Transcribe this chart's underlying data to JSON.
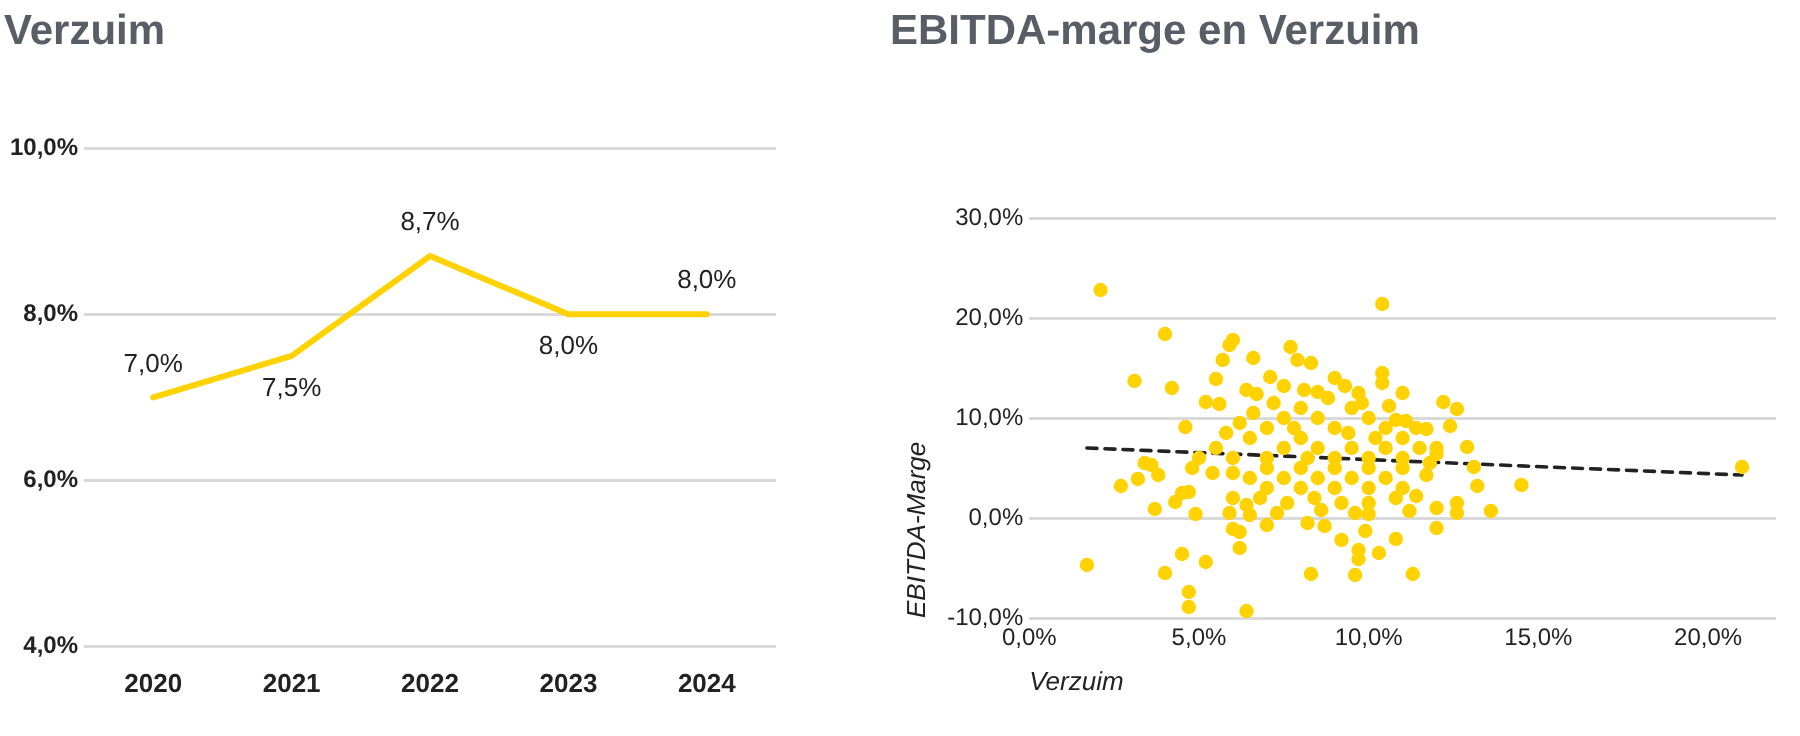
{
  "chart_data": [
    {
      "type": "line",
      "title": "Verzuim",
      "categories": [
        "2020",
        "2021",
        "2022",
        "2023",
        "2024"
      ],
      "series": [
        {
          "color": "#ffd200",
          "values": [
            7.0,
            7.5,
            8.7,
            8.0,
            8.0
          ],
          "value_labels": [
            "7,0%",
            "7,5%",
            "8,7%",
            "8,0%",
            "8,0%"
          ]
        }
      ],
      "ylim": [
        4,
        10
      ],
      "yticks": [
        {
          "value": 4,
          "label": "4,0%"
        },
        {
          "value": 6,
          "label": "6,0%"
        },
        {
          "value": 8,
          "label": "8,0%"
        },
        {
          "value": 10,
          "label": "10,0%"
        }
      ],
      "grid": "y",
      "marker": "none"
    },
    {
      "type": "scatter",
      "title": "EBITDA-marge en Verzuim",
      "xlabel": "Verzuim",
      "ylabel": "EBITDA-Marge",
      "xlim": [
        0,
        22
      ],
      "xticks": [
        {
          "value": 0,
          "label": "0,0%"
        },
        {
          "value": 5,
          "label": "5,0%"
        },
        {
          "value": 10,
          "label": "10,0%"
        },
        {
          "value": 15,
          "label": "15,0%"
        },
        {
          "value": 20,
          "label": "20,0%"
        }
      ],
      "ylim": [
        -10,
        30
      ],
      "yticks": [
        {
          "value": -10,
          "label": "-10,0%"
        },
        {
          "value": 0,
          "label": "0,0%"
        },
        {
          "value": 10,
          "label": "10,0%"
        },
        {
          "value": 20,
          "label": "20,0%"
        },
        {
          "value": 30,
          "label": "30,0%"
        }
      ],
      "grid": "y",
      "series": [
        {
          "type": "scatter",
          "color": "#ffd200",
          "marker": "circle",
          "x": [
            2.1,
            10.4,
            4.0,
            3.1,
            4.2,
            6.0,
            5.9,
            5.7,
            6.6,
            7.7,
            7.9,
            8.3,
            7.1,
            9.0,
            10.4,
            10.4,
            11.0,
            12.2,
            12.6,
            12.4,
            12.9,
            12.0,
            13.1,
            13.2,
            12.6,
            12.6,
            13.6,
            14.5,
            21.0,
            12.0,
            12.0,
            11.3,
            10.8,
            10.3,
            9.9,
            9.7,
            9.7,
            9.6,
            9.2,
            8.3,
            6.4,
            4.7,
            4.7,
            4.0,
            4.5,
            5.2,
            6.2,
            6.0,
            6.2,
            1.7,
            2.7,
            3.2,
            3.4,
            3.6,
            3.8,
            3.7,
            4.3,
            4.5,
            4.7,
            4.9,
            4.6,
            5.2,
            5.5,
            5.6,
            6.4,
            6.7,
            7.5,
            8.1,
            8.5,
            9.3,
            9.7,
            10.8,
            11.1,
            11.7,
            11.7,
            11.4,
            11.2,
            7.0,
            6.5,
            8.2,
            8.7,
            10.0,
            5.9,
            6.5,
            7.0,
            7.5,
            8.0,
            8.5,
            9.0,
            9.5,
            10.0,
            10.5,
            11.0,
            7.0,
            7.5,
            8.0,
            8.5,
            9.0,
            9.5,
            10.0,
            10.5,
            11.0,
            11.5,
            6.0,
            5.5,
            5.0,
            5.8,
            6.2,
            6.5,
            7.0,
            7.5,
            8.0,
            8.5,
            9.0,
            9.5,
            10.0,
            10.5,
            11.0,
            6.0,
            6.8,
            7.6,
            8.4,
            9.2,
            10.0,
            10.8,
            8.0,
            9.0,
            10.0,
            7.0,
            6.0,
            11.0,
            8.8,
            9.8,
            10.6,
            7.2,
            7.8,
            8.2,
            9.4,
            11.4,
            6.6,
            5.4,
            4.8,
            12.0,
            11.8,
            10.2,
            8.6,
            9.6,
            7.3,
            6.4
          ],
          "values": [
            22.8,
            21.4,
            18.4,
            13.7,
            13.0,
            17.8,
            17.3,
            15.8,
            16.0,
            17.1,
            15.8,
            15.5,
            14.1,
            14.0,
            14.5,
            13.5,
            12.5,
            11.6,
            10.9,
            9.2,
            7.1,
            6.4,
            5.1,
            3.2,
            1.5,
            0.5,
            0.7,
            3.3,
            5.1,
            1.0,
            -1.0,
            -5.6,
            -2.1,
            -3.5,
            -1.3,
            -3.2,
            -4.1,
            -5.7,
            -2.2,
            -5.6,
            -9.3,
            -8.9,
            -7.4,
            -5.5,
            -3.6,
            -4.4,
            -3.0,
            -1.1,
            -1.4,
            -4.7,
            3.2,
            3.9,
            5.5,
            5.3,
            4.3,
            0.9,
            1.6,
            2.5,
            2.6,
            0.4,
            9.1,
            11.6,
            13.9,
            11.4,
            12.8,
            12.4,
            13.2,
            12.8,
            12.6,
            13.2,
            12.5,
            9.8,
            9.7,
            8.9,
            4.3,
            2.2,
            0.7,
            -0.7,
            0.3,
            -0.5,
            -0.8,
            0.4,
            0.5,
            8,
            9,
            10,
            11,
            10,
            9,
            11,
            10,
            9,
            8,
            6,
            7,
            8,
            7,
            6,
            7,
            6,
            7,
            6,
            7,
            6,
            7,
            6,
            8.5,
            9.5,
            4,
            3,
            4,
            3,
            4,
            3,
            4,
            3,
            4,
            3,
            2,
            2,
            1.5,
            2,
            1.5,
            1.5,
            2,
            5,
            5,
            5,
            5,
            4.5,
            5,
            12,
            11.5,
            11.2,
            11.5,
            9,
            6,
            8.5,
            9,
            10.5,
            4.5,
            5,
            7,
            5.5,
            8,
            0.8,
            0.5,
            0.5,
            1.3
          ]
        },
        {
          "type": "line",
          "color": "#222222",
          "line_style": "dashed",
          "marker": "none",
          "x": [
            1.7,
            21.0
          ],
          "values": [
            7.0,
            4.3
          ]
        }
      ]
    }
  ]
}
